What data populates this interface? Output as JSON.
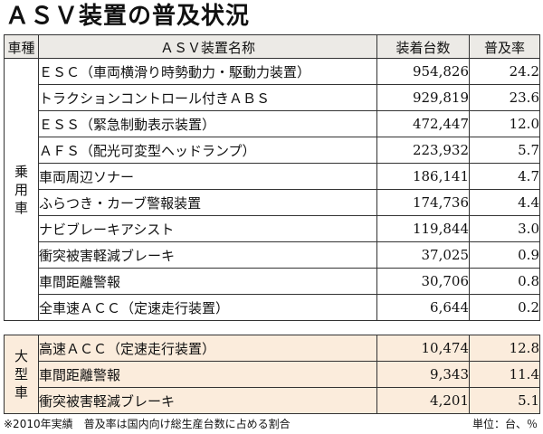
{
  "title": "ＡＳＶ装置の普及状況",
  "headers": {
    "category": "車種",
    "device": "ＡＳＶ装置名称",
    "units": "装着台数",
    "rate": "普及率"
  },
  "groups": [
    {
      "category": "乗用車",
      "rows": [
        {
          "name": "ＥＳＣ（車両横滑り時勢動力・駆動力装置）",
          "units": "954,826",
          "rate": "24.2"
        },
        {
          "name": "トラクションコントロール付きＡＢＳ",
          "units": "929,819",
          "rate": "23.6"
        },
        {
          "name": "ＥＳＳ（緊急制動表示装置）",
          "units": "472,447",
          "rate": "12.0"
        },
        {
          "name": "ＡＦＳ（配光可変型ヘッドランプ）",
          "units": "223,932",
          "rate": "5.7"
        },
        {
          "name": "車両周辺ソナー",
          "units": "186,141",
          "rate": "4.7"
        },
        {
          "name": "ふらつき・カーブ警報装置",
          "units": "174,736",
          "rate": "4.4"
        },
        {
          "name": "ナビブレーキアシスト",
          "units": "119,844",
          "rate": "3.0"
        },
        {
          "name": "衝突被害軽減ブレーキ",
          "units": "37,025",
          "rate": "0.9"
        },
        {
          "name": "車間距離警報",
          "units": "30,706",
          "rate": "0.8"
        },
        {
          "name": "全車速ＡＣＣ（定速走行装置）",
          "units": "6,644",
          "rate": "0.2"
        }
      ]
    },
    {
      "category": "大型車",
      "rows": [
        {
          "name": "高速ＡＣＣ（定速走行装置）",
          "units": "10,474",
          "rate": "12.8"
        },
        {
          "name": "車間距離警報",
          "units": "9,343",
          "rate": "11.4"
        },
        {
          "name": "衝突被害軽減ブレーキ",
          "units": "4,201",
          "rate": "5.1"
        }
      ]
    }
  ],
  "footnote": "※2010年実績　普及率は国内向け総生産台数に占める割合",
  "unit_note": "単位：台、％"
}
